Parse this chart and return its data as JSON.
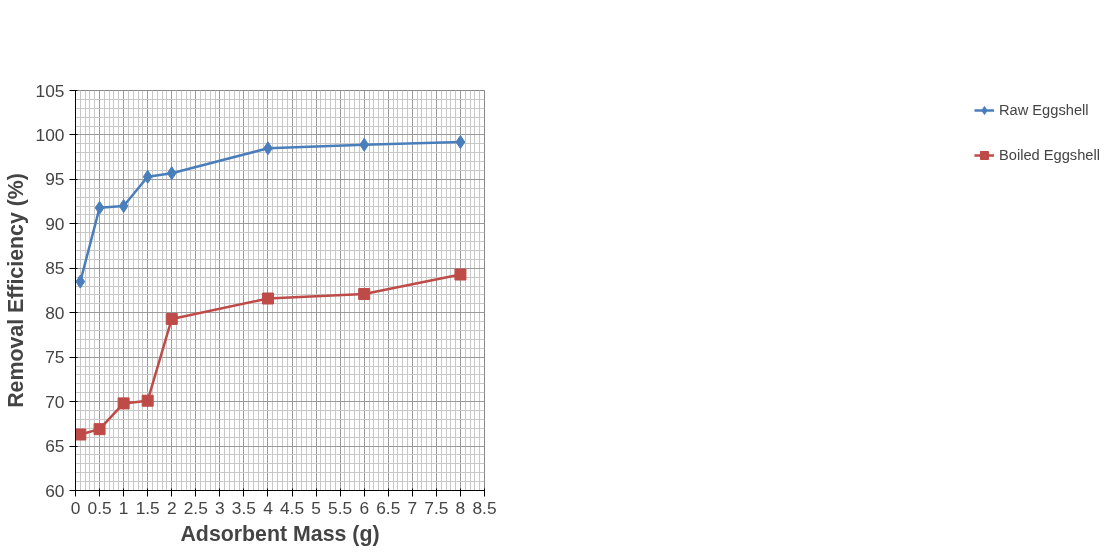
{
  "chart_data": {
    "type": "line",
    "xlabel": "Adsorbent Mass (g)",
    "ylabel": "Removal Efficiency (%)",
    "xlim": [
      0,
      8.5
    ],
    "xticks": [
      0,
      0.5,
      1,
      1.5,
      2,
      2.5,
      3,
      3.5,
      4,
      4.5,
      5,
      5.5,
      6,
      6.5,
      7,
      7.5,
      8,
      8.5
    ],
    "ylim": [
      60,
      105
    ],
    "yticks": [
      60,
      65,
      70,
      75,
      80,
      85,
      90,
      95,
      100,
      105
    ],
    "x": [
      0.1,
      0.5,
      1,
      1.5,
      2,
      4,
      6,
      8
    ],
    "series": [
      {
        "name": "Raw Eggshell",
        "color": "#4a7ebb",
        "marker": "diamond",
        "values": [
          83.5,
          91.8,
          92.0,
          95.3,
          95.7,
          98.5,
          98.9,
          99.2
        ]
      },
      {
        "name": "Boiled Eggshell",
        "color": "#be4b48",
        "marker": "square",
        "values": [
          66.3,
          66.9,
          69.8,
          70.1,
          79.3,
          81.6,
          82.1,
          84.3
        ]
      }
    ],
    "grid": true,
    "legend": "right",
    "line_style": "solid"
  }
}
